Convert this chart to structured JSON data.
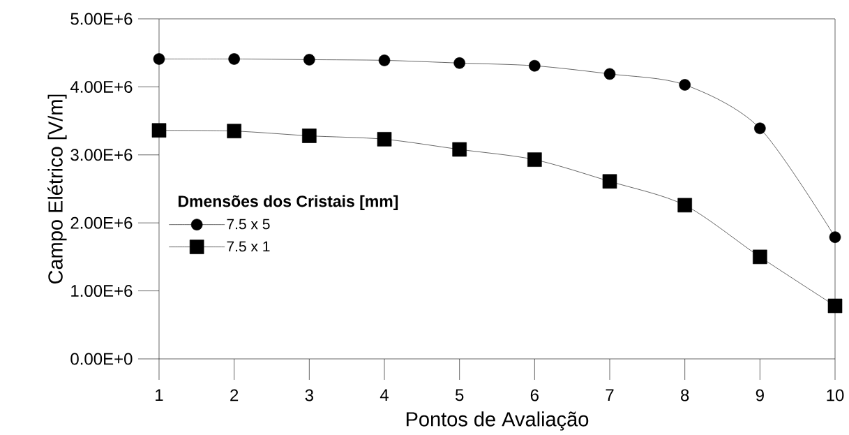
{
  "chart_data": {
    "type": "line",
    "xlabel": "Pontos de Avaliação",
    "ylabel": "Campo Elétrico [V/m]",
    "legend_title": "Dmensões dos Cristais [mm]",
    "legend": "left",
    "x": [
      1,
      2,
      3,
      4,
      5,
      6,
      7,
      8,
      9,
      10
    ],
    "xlim": [
      1,
      10
    ],
    "xticks": [
      1,
      2,
      3,
      4,
      5,
      6,
      7,
      8,
      9,
      10
    ],
    "ylim": [
      0,
      5000000
    ],
    "yticks": [
      {
        "value": 0,
        "label": "0.00E+0"
      },
      {
        "value": 1000000,
        "label": "1.00E+6"
      },
      {
        "value": 2000000,
        "label": "2.00E+6"
      },
      {
        "value": 3000000,
        "label": "3.00E+6"
      },
      {
        "value": 4000000,
        "label": "4.00E+6"
      },
      {
        "value": 5000000,
        "label": "5.00E+6"
      }
    ],
    "grid": false,
    "series": [
      {
        "name": "7.5 x 5",
        "color": "#000000",
        "marker": "circle",
        "values": [
          4410000,
          4410000,
          4400000,
          4390000,
          4350000,
          4310000,
          4190000,
          4030000,
          3390000,
          1790000
        ]
      },
      {
        "name": "7.5 x 1",
        "color": "#000000",
        "marker": "square",
        "values": [
          3360000,
          3350000,
          3280000,
          3230000,
          3080000,
          2930000,
          2610000,
          2260000,
          1500000,
          780000
        ]
      }
    ]
  }
}
